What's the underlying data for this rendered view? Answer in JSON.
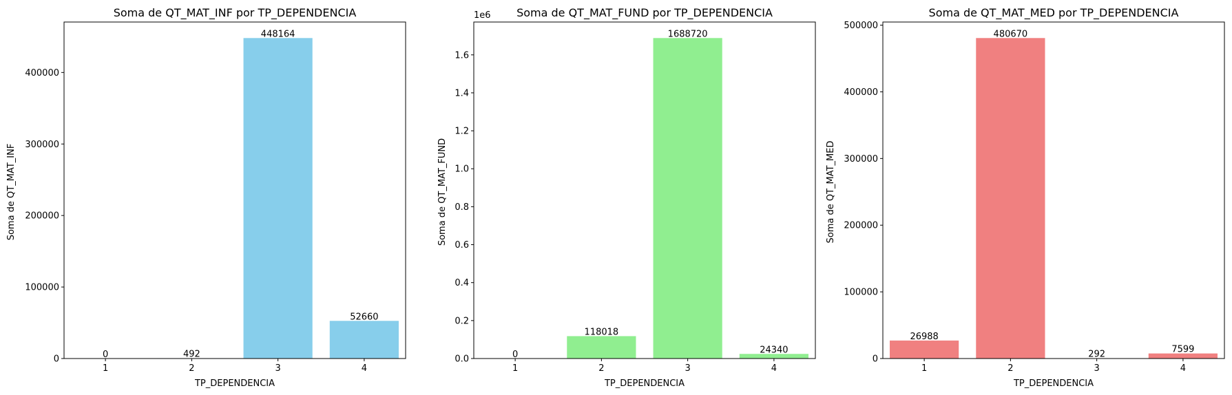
{
  "chart_data": [
    {
      "type": "bar",
      "title": "Soma de QT_MAT_INF por TP_DEPENDENCIA",
      "xlabel": "TP_DEPENDENCIA",
      "ylabel": "Soma de QT_MAT_INF",
      "categories": [
        "1",
        "2",
        "3",
        "4"
      ],
      "values": [
        0,
        492,
        448164,
        52660
      ],
      "bar_labels": [
        "0",
        "492",
        "448164",
        "52660"
      ],
      "ylim": [
        0,
        470572
      ],
      "yticks": [
        0,
        100000,
        200000,
        300000,
        400000
      ],
      "ytick_labels": [
        "0",
        "100000",
        "200000",
        "300000",
        "400000"
      ],
      "y_offset_label": "",
      "color": "#87ceeb",
      "grid": false
    },
    {
      "type": "bar",
      "title": "Soma de QT_MAT_FUND por TP_DEPENDENCIA",
      "xlabel": "TP_DEPENDENCIA",
      "ylabel": "Soma de QT_MAT_FUND",
      "categories": [
        "1",
        "2",
        "3",
        "4"
      ],
      "values": [
        0,
        118018,
        1688720,
        24340
      ],
      "bar_labels": [
        "0",
        "118018",
        "1688720",
        "24340"
      ],
      "ylim": [
        0,
        1773156
      ],
      "yticks": [
        0,
        200000,
        400000,
        600000,
        800000,
        1000000,
        1200000,
        1400000,
        1600000
      ],
      "ytick_labels": [
        "0.0",
        "0.2",
        "0.4",
        "0.6",
        "0.8",
        "1.0",
        "1.2",
        "1.4",
        "1.6"
      ],
      "y_offset_label": "1e6",
      "color": "#90ee90",
      "grid": false
    },
    {
      "type": "bar",
      "title": "Soma de QT_MAT_MED por TP_DEPENDENCIA",
      "xlabel": "TP_DEPENDENCIA",
      "ylabel": "Soma de QT_MAT_MED",
      "categories": [
        "1",
        "2",
        "3",
        "4"
      ],
      "values": [
        26988,
        480670,
        292,
        7599
      ],
      "bar_labels": [
        "26988",
        "480670",
        "292",
        "7599"
      ],
      "ylim": [
        0,
        504704
      ],
      "yticks": [
        0,
        100000,
        200000,
        300000,
        400000,
        500000
      ],
      "ytick_labels": [
        "0",
        "100000",
        "200000",
        "300000",
        "400000",
        "500000"
      ],
      "y_offset_label": "",
      "color": "#f08080",
      "grid": false
    }
  ]
}
